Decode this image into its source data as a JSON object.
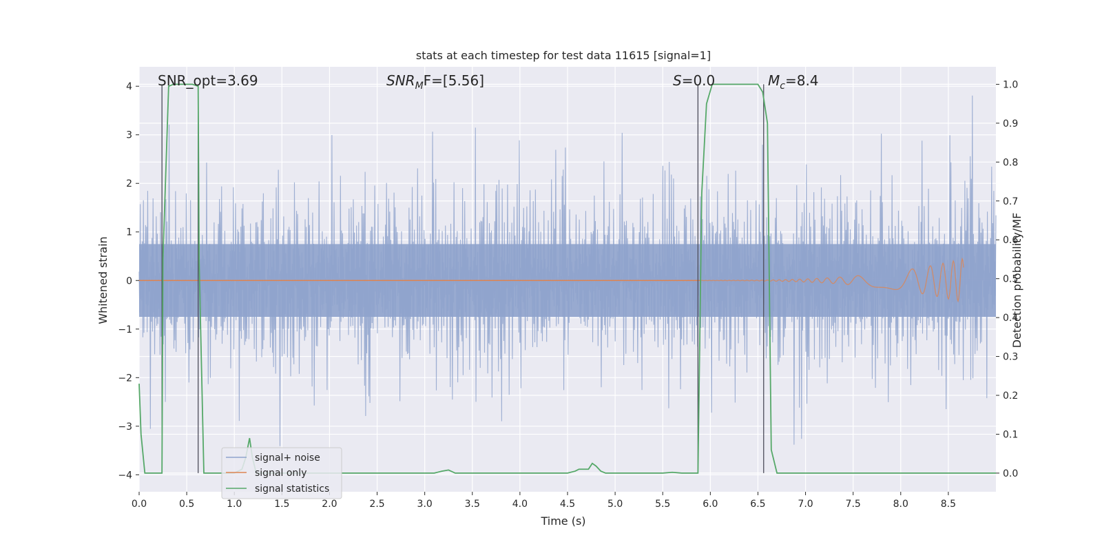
{
  "chart_data": {
    "type": "line",
    "title": "stats at each timestep for test data 11615 [signal=1]",
    "xlabel": "Time (s)",
    "ylabel": "Whitened strain",
    "y2label": "Detection probability/MF",
    "xlim": [
      0.0,
      9.0
    ],
    "ylim": [
      -4.35,
      4.4
    ],
    "y2lim": [
      -0.048,
      1.045
    ],
    "xticks": [
      "0.0",
      "0.5",
      "1.0",
      "1.5",
      "2.0",
      "2.5",
      "3.0",
      "3.5",
      "4.0",
      "4.5",
      "5.0",
      "5.5",
      "6.0",
      "6.5",
      "7.0",
      "7.5",
      "8.0",
      "8.5"
    ],
    "yticks": [
      "4",
      "3",
      "2",
      "1",
      "0",
      "−1",
      "−2",
      "−3",
      "−4"
    ],
    "y2ticks": [
      "1.0",
      "0.9",
      "0.8",
      "0.7",
      "0.6",
      "0.5",
      "0.4",
      "0.3",
      "0.2",
      "0.1",
      "0.0"
    ],
    "grid": true,
    "legend_position": "lower-left",
    "annotations": {
      "snr_opt": "SNR_opt=3.69",
      "snr_mf_prefix": "SNR",
      "snr_mf_sub": "M",
      "snr_mf_suffix": "F=[5.56]",
      "s_label": "S",
      "s_value": "=0.0",
      "mc_label": "M",
      "mc_sub": "c",
      "mc_value": "=8.4"
    },
    "vertical_markers": [
      0.24,
      0.62,
      5.87,
      6.56
    ],
    "series": [
      {
        "name": "signal+ noise",
        "color": "#8fa3cc",
        "description": "whitened noisy strain, approximately unit-variance noise over the full duration",
        "std": 1.0,
        "range": [
          -3.9,
          4.0
        ]
      },
      {
        "name": "signal only",
        "color": "#dd8452",
        "description": "chirp waveform, amplitude growing toward merger near t=8.65 s",
        "chirp_start": 5.9,
        "chirp_end": 8.66,
        "peak_amplitude": 0.45
      },
      {
        "name": "signal statistics",
        "color": "#55a868",
        "x": [
          0.0,
          0.02,
          0.06,
          0.1,
          0.24,
          0.25,
          0.31,
          0.36,
          0.42,
          0.56,
          0.62,
          0.63,
          0.68,
          0.72,
          1.0,
          1.08,
          1.12,
          1.16,
          1.19,
          1.23,
          1.3,
          3.1,
          3.18,
          3.25,
          3.32,
          4.5,
          4.58,
          4.62,
          4.68,
          4.72,
          4.76,
          4.8,
          4.85,
          4.9,
          4.95,
          5.5,
          5.6,
          5.7,
          5.87,
          5.91,
          5.96,
          6.02,
          6.5,
          6.55,
          6.6,
          6.64,
          6.7,
          9.0
        ],
        "y": [
          0.23,
          0.1,
          0.0,
          0.0,
          0.0,
          0.55,
          0.995,
          1.0,
          1.0,
          1.0,
          0.995,
          0.55,
          0.0,
          0.0,
          0.0,
          0.01,
          0.04,
          0.09,
          0.04,
          0.0,
          0.0,
          0.0,
          0.005,
          0.008,
          0.0,
          0.0,
          0.005,
          0.01,
          0.01,
          0.01,
          0.025,
          0.018,
          0.005,
          0.0,
          0.0,
          0.0,
          0.002,
          0.0,
          0.0,
          0.72,
          0.95,
          1.0,
          1.0,
          0.98,
          0.9,
          0.06,
          0.0,
          0.0
        ]
      }
    ]
  }
}
